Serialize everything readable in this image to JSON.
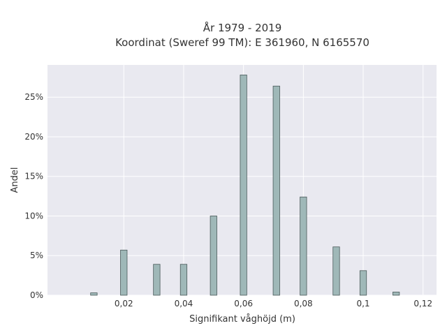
{
  "chart_data": {
    "type": "bar",
    "title_lines": [
      "År 1979 - 2019",
      "Koordinat (Sweref 99 TM): E 361960, N 6165570"
    ],
    "xlabel": "Signifikant våghöjd (m)",
    "ylabel": "Andel",
    "xlim": [
      -0.0055,
      0.1245
    ],
    "ylim": [
      0,
      0.2907
    ],
    "x_ticks": [
      0.02,
      0.04,
      0.06,
      0.08,
      0.1,
      0.12
    ],
    "x_tick_labels": [
      "0,02",
      "0,04",
      "0,06",
      "0,08",
      "0,1",
      "0,12"
    ],
    "y_ticks": [
      0,
      0.05,
      0.1,
      0.15,
      0.2,
      0.25
    ],
    "y_tick_labels": [
      "0%",
      "5%",
      "10%",
      "15%",
      "20%",
      "25%"
    ],
    "bar_width": 0.0022,
    "bars": [
      {
        "x": 0.01,
        "y": 0.003
      },
      {
        "x": 0.02,
        "y": 0.057
      },
      {
        "x": 0.031,
        "y": 0.039
      },
      {
        "x": 0.04,
        "y": 0.039
      },
      {
        "x": 0.05,
        "y": 0.1
      },
      {
        "x": 0.06,
        "y": 0.278
      },
      {
        "x": 0.071,
        "y": 0.264
      },
      {
        "x": 0.08,
        "y": 0.124
      },
      {
        "x": 0.091,
        "y": 0.061
      },
      {
        "x": 0.1,
        "y": 0.031
      },
      {
        "x": 0.111,
        "y": 0.004
      }
    ],
    "grid": true,
    "colors": {
      "plot_background": "#e9e9f0",
      "grid": "#ffffff",
      "bar_fill": "#9fb8b8",
      "bar_stroke": "#4a5a5a"
    }
  }
}
